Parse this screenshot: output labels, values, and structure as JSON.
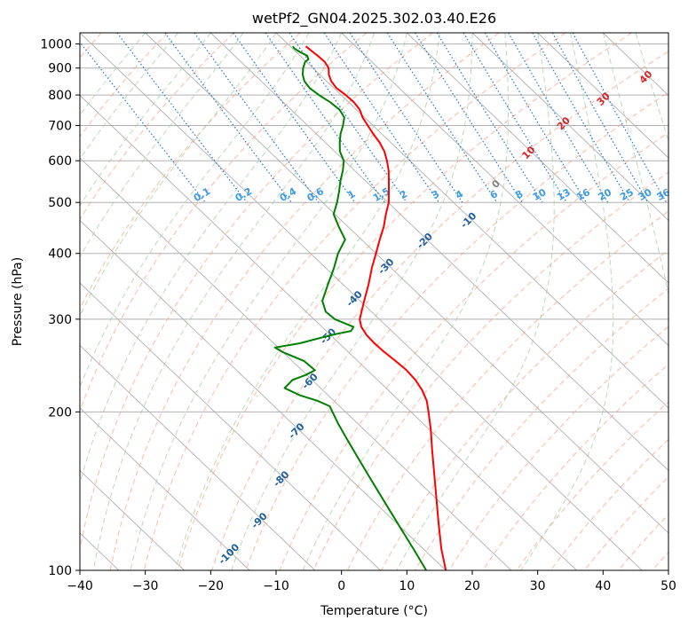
{
  "chart_data": {
    "type": "line",
    "diagram": "skew-T log-P",
    "title": "wetPf2_GN04.2025.302.03.40.E26",
    "xlabel": "Temperature (°C)",
    "ylabel": "Pressure (hPa)",
    "xlim": [
      -40,
      50
    ],
    "ylim": [
      1050,
      100
    ],
    "x_ticks": [
      "−40",
      "−30",
      "−20",
      "−10",
      "0",
      "10",
      "20",
      "30",
      "40",
      "50"
    ],
    "x_tick_values": [
      -40,
      -30,
      -20,
      -10,
      0,
      10,
      20,
      30,
      40,
      50
    ],
    "y_ticks": [
      "100",
      "200",
      "300",
      "400",
      "500",
      "600",
      "700",
      "800",
      "900",
      "1000"
    ],
    "y_tick_values": [
      100,
      200,
      300,
      400,
      500,
      600,
      700,
      800,
      900,
      1000
    ],
    "colors": {
      "temperature": "#ff0000",
      "dewpoint": "#008000",
      "isotherm_grid": "#b0b0b0",
      "isobar_grid": "#b0b0b0",
      "dry_adiabat": "#ff9f80",
      "moist_adiabat": "#99cc99",
      "mixing_ratio": "#1e78d2",
      "isotherm_label_cold": "#1f5fa0",
      "isotherm_label_warm": "#d62728",
      "isotherm_label_zero": "#808080",
      "mixing_label": "#3c9be6"
    },
    "isotherm_labels": [
      "-100",
      "-90",
      "-80",
      "-70",
      "-60",
      "-50",
      "-40",
      "-30",
      "-20",
      "-10",
      "0",
      "10",
      "20",
      "30",
      "40"
    ],
    "isotherm_label_values": [
      -100,
      -90,
      -80,
      -70,
      -60,
      -50,
      -40,
      -30,
      -20,
      -10,
      0,
      10,
      20,
      30,
      40
    ],
    "mixing_ratio_labels": [
      "0.1",
      "0.2",
      "0.4",
      "0.6",
      "1",
      "1.5",
      "2",
      "3",
      "4",
      "6",
      "8",
      "10",
      "13",
      "16",
      "20",
      "25",
      "30",
      "36"
    ],
    "mixing_ratio_values": [
      0.1,
      0.2,
      0.4,
      0.6,
      1,
      1.5,
      2,
      3,
      4,
      6,
      8,
      10,
      13,
      16,
      20,
      25,
      30,
      36
    ],
    "series": [
      {
        "name": "Temperature",
        "pressure": [
          990,
          975,
          950,
          925,
          900,
          875,
          850,
          825,
          800,
          775,
          750,
          725,
          700,
          675,
          650,
          625,
          600,
          575,
          550,
          525,
          500,
          475,
          450,
          425,
          400,
          375,
          350,
          325,
          300,
          290,
          280,
          270,
          260,
          250,
          240,
          230,
          220,
          210,
          200,
          185,
          170,
          155,
          140,
          125,
          110,
          100
        ],
        "values": [
          -7.6,
          -7.5,
          -7.3,
          -7.2,
          -7.6,
          -8.6,
          -9.3,
          -9.6,
          -9.3,
          -9.2,
          -9.5,
          -10.3,
          -10.8,
          -11.3,
          -11.7,
          -12.4,
          -13.5,
          -14.8,
          -16.4,
          -18.1,
          -19.9,
          -22.2,
          -24.5,
          -27.2,
          -30.0,
          -33.0,
          -36.0,
          -39.4,
          -43.0,
          -44.0,
          -44.5,
          -44.6,
          -44.5,
          -44.2,
          -44.0,
          -44.2,
          -44.8,
          -45.8,
          -47.3,
          -49.8,
          -52.7,
          -55.8,
          -59.2,
          -63.0,
          -67.2,
          -70.0
        ]
      },
      {
        "name": "Dewpoint",
        "pressure": [
          990,
          980,
          965,
          950,
          935,
          925,
          900,
          875,
          850,
          825,
          800,
          775,
          750,
          725,
          700,
          675,
          650,
          625,
          600,
          575,
          550,
          525,
          500,
          475,
          450,
          425,
          400,
          375,
          350,
          325,
          310,
          300,
          290,
          285,
          280,
          270,
          265,
          260,
          250,
          240,
          235,
          230,
          222,
          215,
          210,
          205,
          200,
          190,
          180,
          165,
          150,
          135,
          120,
          110,
          100
        ],
        "values": [
          -9.6,
          -9.7,
          -9.4,
          -8.9,
          -9.3,
          -10.2,
          -11.5,
          -12.6,
          -13.4,
          -13.7,
          -13.4,
          -12.8,
          -12.6,
          -13.1,
          -14.6,
          -16.3,
          -17.8,
          -19.2,
          -20.1,
          -21.8,
          -23.8,
          -25.7,
          -27.8,
          -30.2,
          -31.4,
          -32.5,
          -35.8,
          -38.8,
          -42.2,
          -45.8,
          -47.0,
          -46.8,
          -45.2,
          -46.2,
          -49.8,
          -56.0,
          -60.5,
          -60.1,
          -58.2,
          -58.0,
          -60.2,
          -63.0,
          -65.5,
          -64.3,
          -62.5,
          -61.5,
          -62.0,
          -63.0,
          -63.9,
          -65.3,
          -66.8,
          -68.4,
          -70.2,
          -71.5,
          -73.0
        ]
      }
    ]
  }
}
